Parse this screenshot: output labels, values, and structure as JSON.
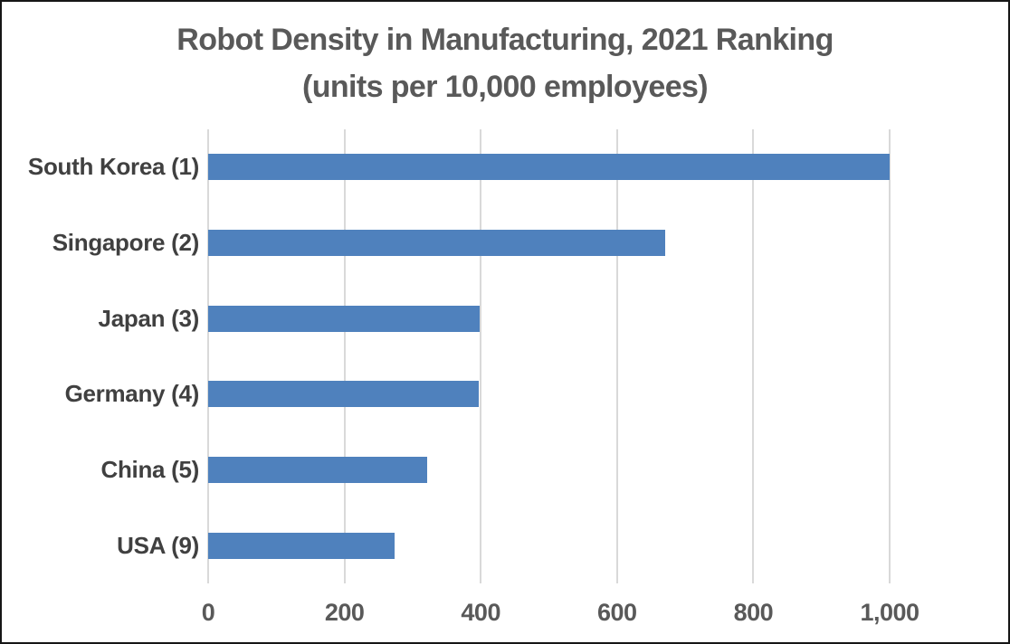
{
  "chart_data": {
    "type": "bar",
    "orientation": "horizontal",
    "title": "Robot Density in Manufacturing, 2021 Ranking",
    "subtitle": "(units per 10,000 employees)",
    "categories": [
      "South Korea (1)",
      "Singapore (2)",
      "Japan (3)",
      "Germany (4)",
      "China (5)",
      "USA (9)"
    ],
    "values": [
      1000,
      670,
      399,
      397,
      322,
      274
    ],
    "xlabel": "",
    "ylabel": "",
    "xlim": [
      0,
      1000
    ],
    "x_ticks": [
      0,
      200,
      400,
      600,
      800,
      1000
    ],
    "x_tick_labels": [
      "0",
      "200",
      "400",
      "600",
      "800",
      "1,000"
    ],
    "grid": "vertical-gridlines-on",
    "legend": "none",
    "colors": {
      "bar": "#4f81bd",
      "gridline": "#d9d9d9",
      "title_text": "#595959",
      "category_text": "#404040",
      "tick_text": "#595959",
      "frame_border": "#161616",
      "background": "#ffffff"
    }
  }
}
